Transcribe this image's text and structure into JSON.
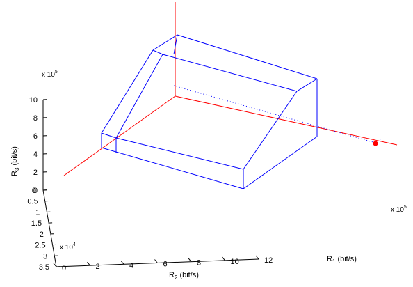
{
  "chart_data": {
    "type": "3d-region",
    "axes": {
      "r1": {
        "label_main": "R",
        "label_sub": "1",
        "label_unit": " (bit/s)",
        "multiplier_base": "x 10",
        "multiplier_exp": "5",
        "ticks": [
          0,
          2,
          4,
          6,
          8,
          10,
          12
        ],
        "range": [
          0,
          12
        ]
      },
      "r2": {
        "label_main": "R",
        "label_sub": "2",
        "label_unit": " (bit/s)",
        "multiplier_base": "x 10",
        "multiplier_exp": "4",
        "ticks": [
          0,
          0.5,
          1,
          1.5,
          2,
          2.5,
          3,
          3.5
        ],
        "range": [
          0,
          3.5
        ]
      },
      "r3": {
        "label_main": "R",
        "label_sub": "3",
        "label_unit": " (bit/s)",
        "multiplier_base": "x 10",
        "multiplier_exp": "5",
        "ticks": [
          0,
          2,
          4,
          6,
          8,
          10
        ],
        "range": [
          0,
          10
        ]
      }
    },
    "region": {
      "color": "#0000ff",
      "vertices": {
        "A": [
          0,
          0,
          8.7
        ],
        "B": [
          0,
          0.2,
          8.7
        ],
        "C": [
          4.5,
          0,
          8.7
        ],
        "D": [
          4.5,
          0.2,
          8.7
        ],
        "E": [
          0,
          3.1,
          3.5
        ],
        "F": [
          0,
          3.3,
          3.5
        ],
        "G": [
          11.5,
          0,
          6
        ],
        "H": [
          0,
          3.3,
          2.6
        ],
        "I": [
          9.5,
          3.3,
          0
        ],
        "J": [
          11.5,
          0,
          0
        ],
        "K": [
          11.5,
          3.3,
          0
        ],
        "L": [
          0,
          3.1,
          2.6
        ]
      },
      "edges": [
        [
          "A",
          "B"
        ],
        [
          "A",
          "C"
        ],
        [
          "B",
          "D"
        ],
        [
          "C",
          "D"
        ],
        [
          "A",
          "E"
        ],
        [
          "B",
          "F"
        ],
        [
          "E",
          "F"
        ],
        [
          "C",
          "G"
        ],
        [
          "D",
          "G"
        ],
        [
          "E",
          "L"
        ],
        [
          "F",
          "H"
        ],
        [
          "H",
          "L"
        ],
        [
          "H",
          "I"
        ],
        [
          "F",
          "I"
        ],
        [
          "G",
          "J"
        ],
        [
          "G",
          "K"
        ],
        [
          "I",
          "K"
        ]
      ]
    },
    "axis_lines_color": "#ff0000",
    "point": {
      "r1": 11.5,
      "r2": 3.3,
      "r3": 8.7,
      "color": "#ff0000"
    },
    "guide_color": "#0000ff",
    "grid": false,
    "box_axes": true
  }
}
